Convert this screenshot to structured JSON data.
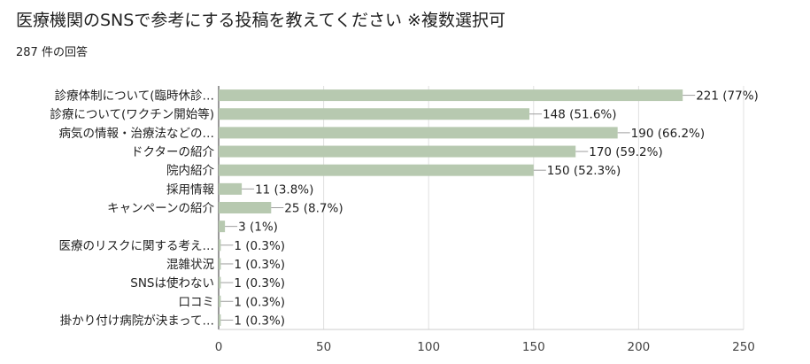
{
  "title": "医療機関のSNSで参考にする投稿を教えてください ※複数選択可",
  "response_count": "287 件の回答",
  "bar_color": "#b7c9b0",
  "chart_data": {
    "type": "bar",
    "orientation": "horizontal",
    "title": "医療機関のSNSで参考にする投稿を教えてください ※複数選択可",
    "xlim": [
      0,
      250
    ],
    "xticks": [
      0,
      50,
      100,
      150,
      200,
      250
    ],
    "grid": true,
    "categories": [
      "診療体制について(臨時休診…",
      "診療について(ワクチン開始等)",
      "病気の情報・治療法などの…",
      "ドクターの紹介",
      "院内紹介",
      "採用情報",
      "キャンペーンの紹介",
      "",
      "医療のリスクに関する考え…",
      "混雑状況",
      "SNSは使わない",
      "口コミ",
      "掛かり付け病院が決まって…"
    ],
    "values": [
      221,
      148,
      190,
      170,
      150,
      11,
      25,
      3,
      1,
      1,
      1,
      1,
      1
    ],
    "data_labels": [
      "221 (77%)",
      "148 (51.6%)",
      "190 (66.2%)",
      "170 (59.2%)",
      "150 (52.3%)",
      "11 (3.8%)",
      "25 (8.7%)",
      "3 (1%)",
      "1 (0.3%)",
      "1 (0.3%)",
      "1 (0.3%)",
      "1 (0.3%)",
      "1 (0.3%)"
    ]
  }
}
